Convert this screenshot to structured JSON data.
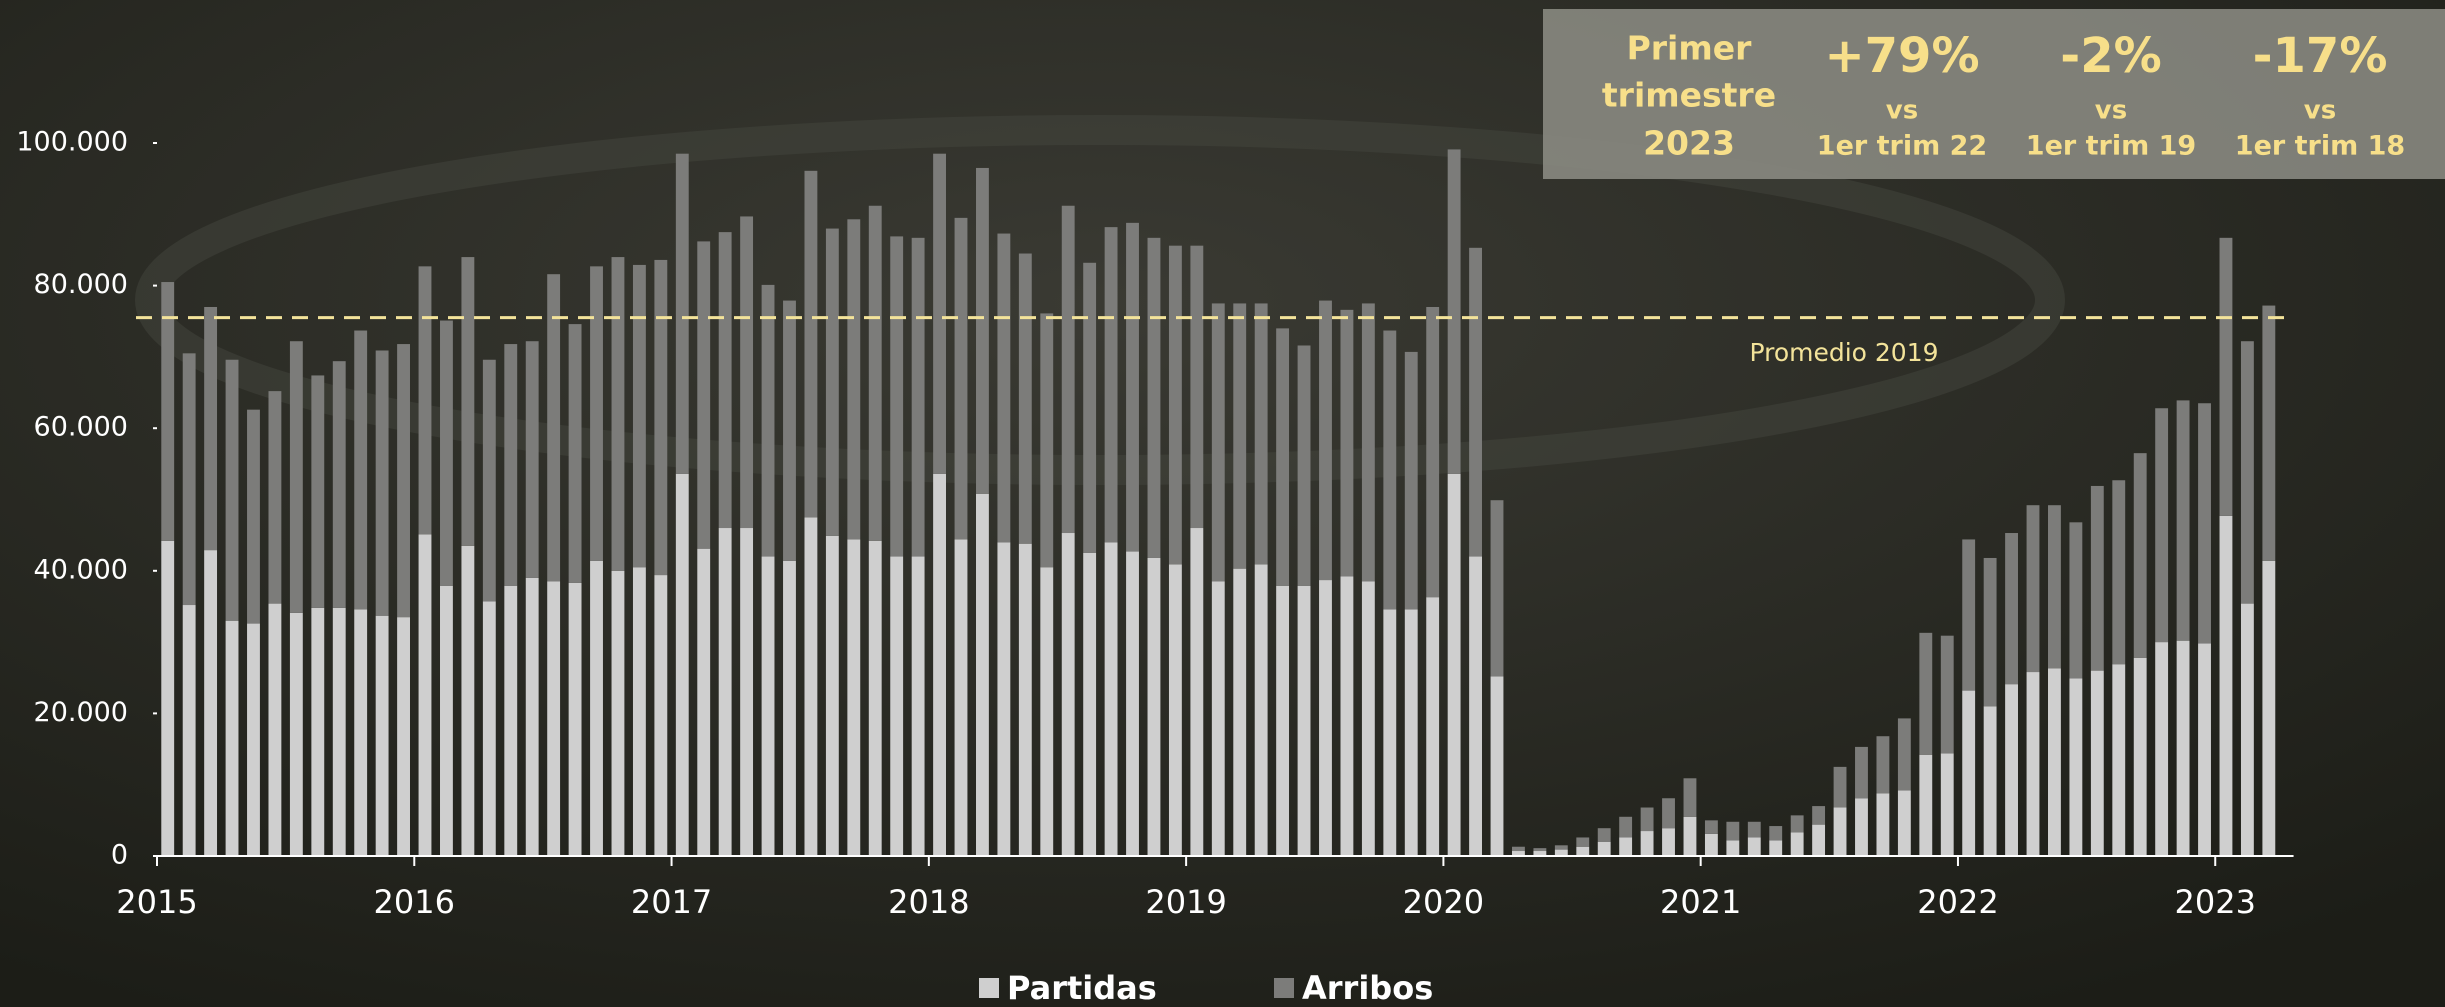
{
  "chart_data": {
    "type": "bar",
    "stacked": true,
    "categories": [
      "2015",
      null,
      null,
      null,
      null,
      null,
      null,
      null,
      null,
      null,
      null,
      null,
      "2016",
      null,
      null,
      null,
      null,
      null,
      null,
      null,
      null,
      null,
      null,
      null,
      "2017",
      null,
      null,
      null,
      null,
      null,
      null,
      null,
      null,
      null,
      null,
      null,
      "2018",
      null,
      null,
      null,
      null,
      null,
      null,
      null,
      null,
      null,
      null,
      null,
      "2019",
      null,
      null,
      null,
      null,
      null,
      null,
      null,
      null,
      null,
      null,
      null,
      "2020",
      null,
      null,
      null,
      null,
      null,
      null,
      null,
      null,
      null,
      null,
      null,
      "2021",
      null,
      null,
      null,
      null,
      null,
      null,
      null,
      null,
      null,
      null,
      null,
      "2022",
      null,
      null,
      null,
      null,
      null,
      null,
      null,
      null,
      null,
      null,
      null,
      "2023",
      null,
      null
    ],
    "series": [
      {
        "name": "Partidas",
        "color": "#cfcfcf",
        "values": [
          44200,
          35200,
          42900,
          33000,
          32600,
          35400,
          34100,
          34800,
          34800,
          34600,
          33700,
          33500,
          45100,
          37900,
          43500,
          35700,
          37900,
          39000,
          38500,
          38300,
          41400,
          40000,
          40500,
          39400,
          53600,
          43100,
          46000,
          46000,
          42000,
          41400,
          47500,
          44900,
          44400,
          44200,
          42000,
          42000,
          53600,
          44400,
          50800,
          44000,
          43800,
          40500,
          45300,
          42500,
          44000,
          42700,
          41800,
          40900,
          46000,
          38500,
          40300,
          40900,
          37900,
          37900,
          38700,
          39200,
          38500,
          34600,
          34600,
          36300,
          53600,
          42000,
          25200,
          700,
          700,
          900,
          1300,
          2000,
          2600,
          3500,
          3900,
          5500,
          3100,
          2200,
          2600,
          2200,
          3300,
          4400,
          6800,
          8100,
          8800,
          9200,
          14200,
          14400,
          23200,
          21000,
          24100,
          25800,
          26300,
          24900,
          26000,
          26900,
          27800,
          30000,
          30200,
          29800,
          47700,
          35400,
          41400
        ]
      },
      {
        "name": "Arribos",
        "color": "#7c7c7a",
        "values": [
          36300,
          35300,
          34100,
          36600,
          30000,
          29800,
          38100,
          32600,
          34600,
          39100,
          37200,
          38300,
          37600,
          37200,
          40500,
          33900,
          33900,
          33200,
          43100,
          36300,
          41300,
          44000,
          42400,
          44200,
          44900,
          43100,
          41500,
          43700,
          38100,
          36500,
          48600,
          43100,
          44900,
          47000,
          44900,
          44700,
          44900,
          45100,
          45700,
          43300,
          40700,
          35600,
          45900,
          40700,
          44200,
          46100,
          44900,
          44700,
          39600,
          39000,
          37200,
          36600,
          36100,
          33700,
          39200,
          37400,
          39000,
          39100,
          36100,
          40700,
          45500,
          43300,
          24700,
          600,
          400,
          600,
          1300,
          1900,
          2900,
          3300,
          4200,
          5400,
          1900,
          2600,
          2200,
          2000,
          2400,
          2600,
          5700,
          7200,
          8000,
          10100,
          17100,
          16500,
          21200,
          20800,
          21200,
          23400,
          22900,
          21900,
          25900,
          25800,
          28700,
          32800,
          33700,
          33700,
          39000,
          36800,
          35800
        ]
      }
    ],
    "ylim": [
      0,
      100000
    ],
    "yticks": [
      0,
      {
        "value": 20000,
        "label": "20.000"
      },
      {
        "value": 40000,
        "label": "40.000"
      },
      {
        "value": 60000,
        "label": "60.000"
      },
      {
        "value": 80000,
        "label": "80.000"
      },
      {
        "value": 100000,
        "label": "100.000"
      }
    ],
    "reference_line": {
      "value": 75500,
      "label": "Promedio 2019",
      "color": "#f3e39a"
    },
    "legend": "bottom",
    "summary": {
      "title": [
        "Primer",
        "trimestre",
        "2023"
      ],
      "comparisons": [
        {
          "change": "+79%",
          "vs": "vs",
          "reference": "1er trim 22"
        },
        {
          "change": "-2%",
          "vs": "vs",
          "reference": "1er trim 19"
        },
        {
          "change": "-17%",
          "vs": "vs",
          "reference": "1er trim 18"
        }
      ]
    }
  }
}
